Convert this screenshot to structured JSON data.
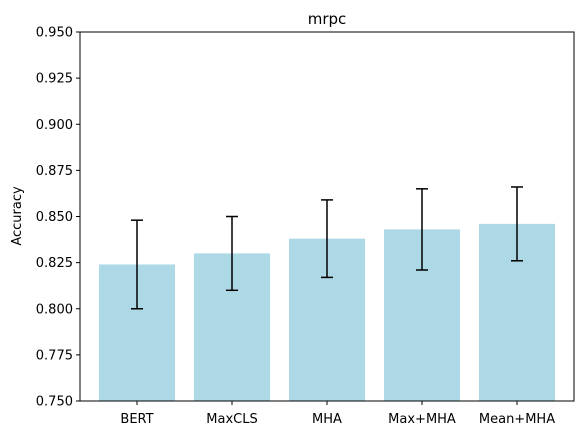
{
  "chart_data": {
    "type": "bar",
    "title": "mrpc",
    "xlabel": "",
    "ylabel": "Accuracy",
    "categories": [
      "BERT",
      "MaxCLS",
      "MHA",
      "Max+MHA",
      "Mean+MHA"
    ],
    "values": [
      0.824,
      0.83,
      0.838,
      0.843,
      0.846
    ],
    "error_low": [
      0.8,
      0.81,
      0.817,
      0.821,
      0.826
    ],
    "error_high": [
      0.848,
      0.85,
      0.859,
      0.865,
      0.866
    ],
    "ylim": [
      0.75,
      0.95
    ],
    "yticks": [
      "0.750",
      "0.775",
      "0.800",
      "0.825",
      "0.850",
      "0.875",
      "0.900",
      "0.925",
      "0.950"
    ],
    "grid": false,
    "bar_color": "#add8e6",
    "error_color": "#000000"
  }
}
